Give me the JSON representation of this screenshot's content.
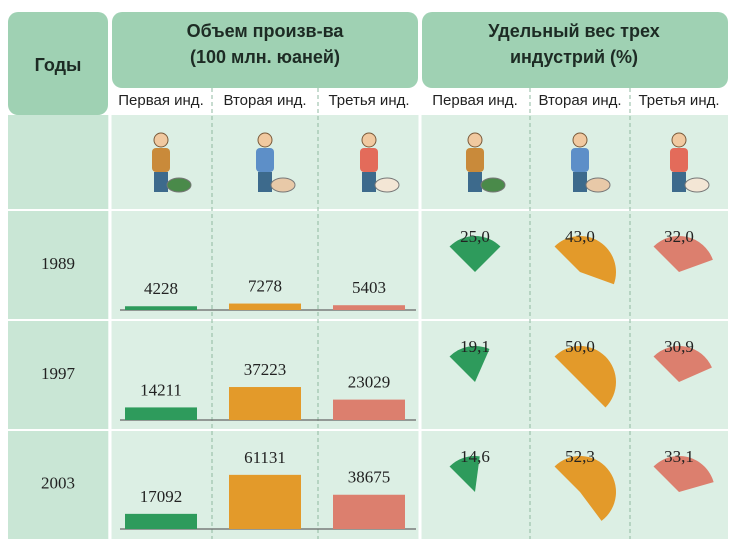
{
  "row_header": "Годы",
  "chart_data": [
    {
      "type": "bar",
      "title": [
        "Объем произв-ва",
        "(100 млн. юаней)"
      ],
      "categories": [
        "1989",
        "1997",
        "2003"
      ],
      "series": [
        {
          "name": "Первая  инд.",
          "color": "#2e9b5c",
          "values": [
            4228,
            14211,
            17092
          ]
        },
        {
          "name": "Вторая инд.",
          "color": "#e39a2a",
          "values": [
            7278,
            37223,
            61131
          ]
        },
        {
          "name": "Третья инд.",
          "color": "#dc7f6e",
          "values": [
            5403,
            23029,
            38675
          ]
        }
      ],
      "ylim": [
        0,
        70000
      ]
    },
    {
      "type": "pie",
      "title": [
        "Удельный вес трех",
        "индустрий (%)"
      ],
      "series": [
        {
          "name": "Первая  инд.",
          "color": "#2e9b5c",
          "values": [
            25.0,
            19.1,
            14.6
          ],
          "value_labels": [
            "25,0",
            "19,1",
            "14,6"
          ]
        },
        {
          "name": "Вторая инд.",
          "color": "#e39a2a",
          "values": [
            43.0,
            50.0,
            52.3
          ],
          "value_labels": [
            "43,0",
            "50,0",
            "52,3"
          ]
        },
        {
          "name": "Третья инд.",
          "color": "#dc7f6e",
          "values": [
            32.0,
            30.9,
            33.1
          ],
          "value_labels": [
            "32,0",
            "30,9",
            "33,1"
          ]
        }
      ]
    }
  ]
}
